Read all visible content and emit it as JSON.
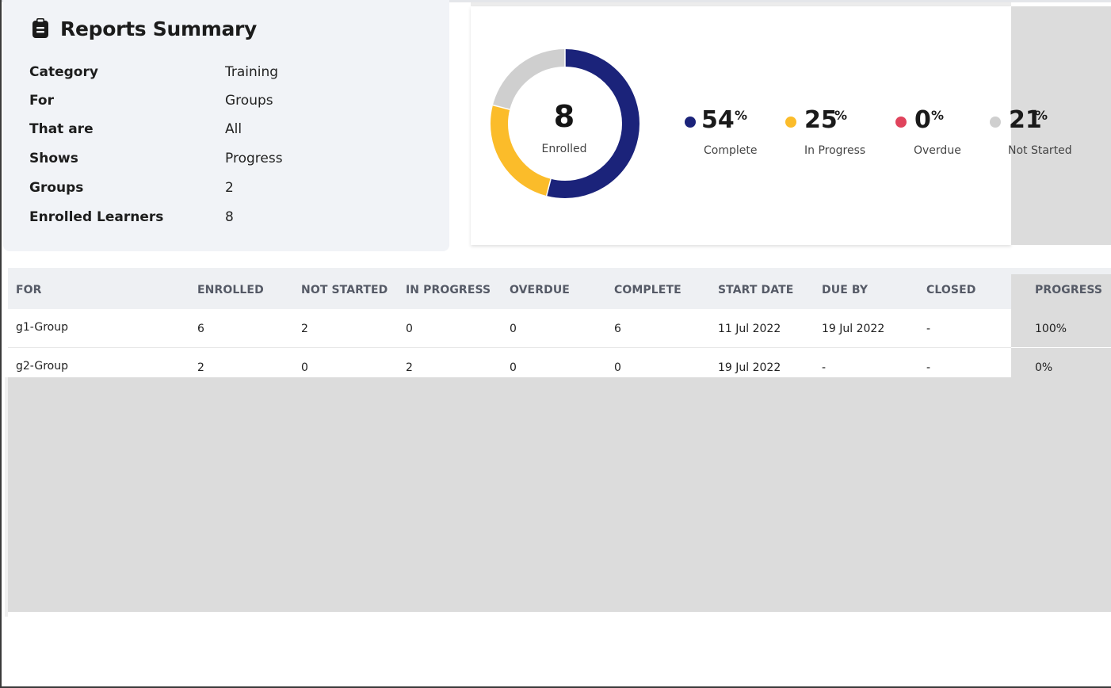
{
  "summary": {
    "title": "Reports Summary",
    "icon": "clipboard-icon",
    "rows": [
      {
        "label": "Category",
        "value": "Training"
      },
      {
        "label": "For",
        "value": "Groups"
      },
      {
        "label": "That are",
        "value": "All"
      },
      {
        "label": "Shows",
        "value": "Progress"
      },
      {
        "label": "Groups",
        "value": "2"
      },
      {
        "label": "Enrolled Learners",
        "value": "8"
      }
    ]
  },
  "donut": {
    "center_value": "8",
    "center_label": "Enrolled",
    "segments": [
      {
        "name": "Complete",
        "percent": 54,
        "color": "#1b237a"
      },
      {
        "name": "In Progress",
        "percent": 25,
        "color": "#fbbc2a"
      },
      {
        "name": "Overdue",
        "percent": 0,
        "color": "#e0435c"
      },
      {
        "name": "Not Started",
        "percent": 21,
        "color": "#cfcfcf"
      }
    ]
  },
  "stats": [
    {
      "value": "54",
      "unit": "%",
      "label": "Complete",
      "color": "#1b237a"
    },
    {
      "value": "25",
      "unit": "%",
      "label": "In Progress",
      "color": "#fbbc2a"
    },
    {
      "value": "0",
      "unit": "%",
      "label": "Overdue",
      "color": "#e0435c"
    },
    {
      "value": "21",
      "unit": "%",
      "label": "Not Started",
      "color": "#cfcfcf"
    }
  ],
  "table": {
    "columns": [
      "FOR",
      "ENROLLED",
      "NOT STARTED",
      "IN PROGRESS",
      "OVERDUE",
      "COMPLETE",
      "START DATE",
      "DUE BY",
      "CLOSED",
      "PROGRESS"
    ],
    "rows": [
      [
        "g1-Group",
        "6",
        "2",
        "0",
        "0",
        "6",
        "11 Jul 2022",
        "19 Jul 2022",
        "-",
        "100%"
      ],
      [
        "g2-Group",
        "2",
        "0",
        "2",
        "0",
        "0",
        "19 Jul 2022",
        "-",
        "-",
        "0%"
      ]
    ]
  }
}
